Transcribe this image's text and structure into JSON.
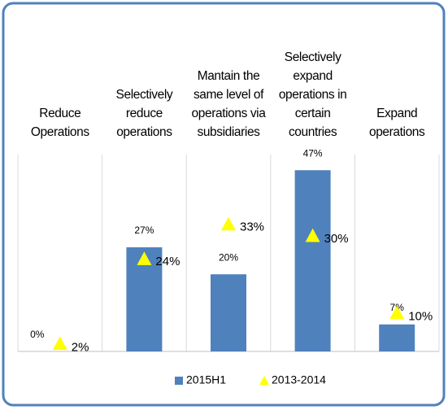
{
  "chart_data": {
    "type": "bar",
    "categories": [
      "Reduce Operations",
      "Selectively reduce operations",
      "Mantain the same level of operations via subsidiaries",
      "Selectively expand operations in certain countries",
      "Expand operations"
    ],
    "series": [
      {
        "name": "2015H1",
        "color": "#4f81bd",
        "values": [
          0,
          27,
          20,
          47,
          7
        ],
        "value_labels": [
          "0%",
          "27%",
          "20%",
          "47%",
          "7%"
        ]
      },
      {
        "name": "2013-2014",
        "type": "triangle",
        "color": "#ffff00",
        "values": [
          2,
          24,
          33,
          30,
          10
        ],
        "value_labels": [
          "2%",
          "24%",
          "33%",
          "30%",
          "10%"
        ]
      }
    ],
    "ylim": [
      0,
      50
    ]
  }
}
